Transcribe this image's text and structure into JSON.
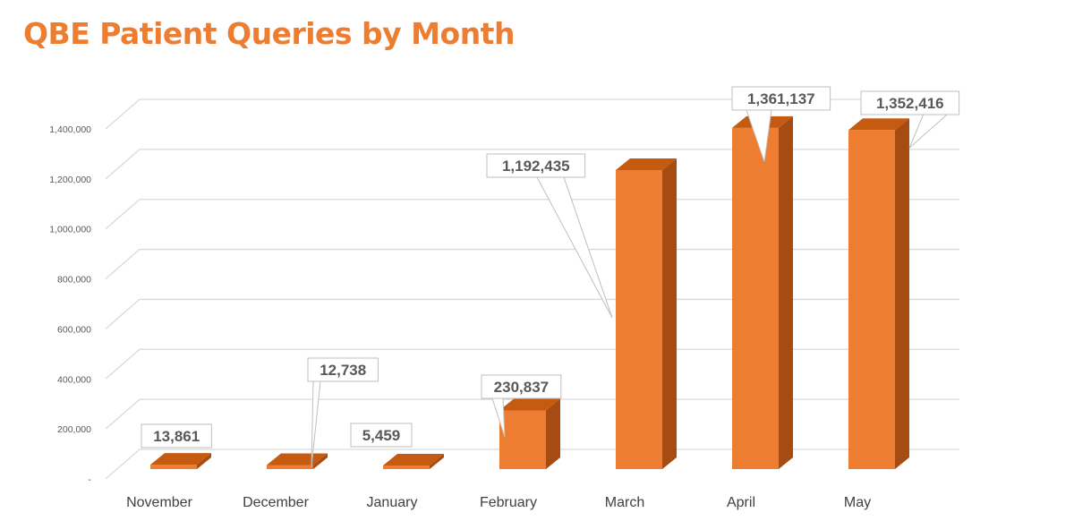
{
  "title": "QBE Patient Queries by Month",
  "colors": {
    "title": "#ED7D31",
    "bar_front": "#ED7D31",
    "bar_top": "#C55A11",
    "bar_side": "#A64C12",
    "grid": "#D9D9D9",
    "tick_text": "#595959",
    "label_text": "#595959"
  },
  "chart_data": {
    "type": "bar",
    "categories": [
      "November",
      "December",
      "January",
      "February",
      "March",
      "April",
      "May"
    ],
    "values": [
      13861,
      12738,
      5459,
      230837,
      1192435,
      1361137,
      1352416
    ],
    "data_labels": [
      "13,861",
      "12,738",
      "5,459",
      "230,837",
      "1,192,435",
      "1,361,137",
      "1,352,416"
    ],
    "y_ticks": [
      0,
      200000,
      400000,
      600000,
      800000,
      1000000,
      1200000,
      1400000
    ],
    "y_tick_labels": [
      "-",
      "200,000",
      "400,000",
      "600,000",
      "800,000",
      "1,000,000",
      "1,200,000",
      "1,400,000"
    ],
    "ylim": [
      0,
      1400000
    ],
    "grid": true,
    "legend": false,
    "style": "3d-clustered-column"
  }
}
